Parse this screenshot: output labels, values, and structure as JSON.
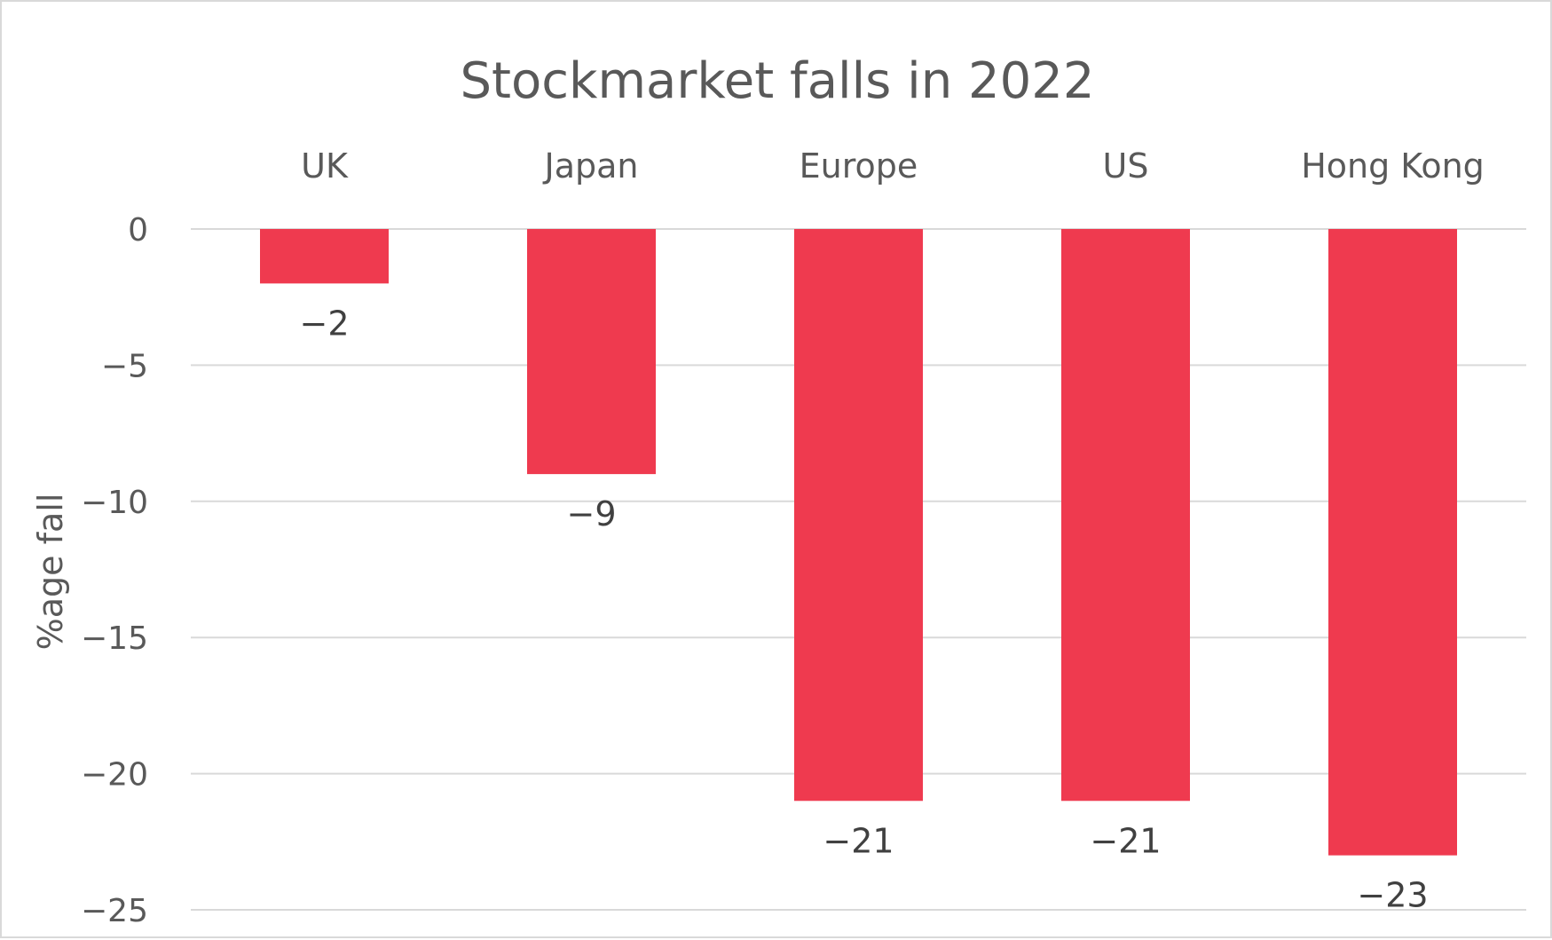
{
  "chart_data": {
    "type": "bar",
    "title": "Stockmarket falls in 2022",
    "xlabel": "",
    "ylabel": "%age fall",
    "categories": [
      "UK",
      "Japan",
      "Europe",
      "US",
      "Hong Kong"
    ],
    "values": [
      -2,
      -9,
      -21,
      -21,
      -23
    ],
    "data_labels": [
      "-2",
      "-9",
      "-21",
      "-21",
      "-23"
    ],
    "ylim": [
      -25,
      0
    ],
    "yticks": [
      0,
      -5,
      -10,
      -15,
      -20,
      -25
    ],
    "ytick_labels": [
      "0",
      "-5",
      "-10",
      "-15",
      "-20",
      "-25"
    ],
    "grid": true,
    "category_labels_position": "top",
    "legend": "none",
    "bar_color": "#EF3A4F",
    "grid_color": "#d9d9d9",
    "text_color": "#595959"
  }
}
